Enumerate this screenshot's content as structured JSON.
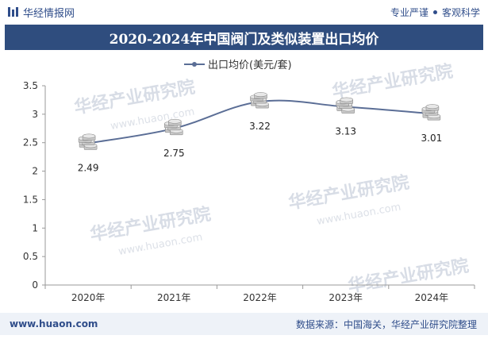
{
  "header": {
    "brand": "华经情报网",
    "tagline_left": "专业严谨",
    "tagline_right": "客观科学"
  },
  "colors": {
    "brand": "#2f4d8a",
    "title_bg": "#2f4d7e",
    "series_line": "#5b6e96",
    "footer_bg": "#eef2f8"
  },
  "footer": {
    "website": "www.huaon.com",
    "source": "数据来源：中国海关，华经产业研究院整理"
  },
  "watermark": {
    "text": "华经产业研究院",
    "url": "www.huaon.com"
  },
  "chart_data": {
    "type": "line",
    "title": "2020-2024年中国阀门及类似装置出口均价",
    "categories": [
      "2020年",
      "2021年",
      "2022年",
      "2023年",
      "2024年"
    ],
    "series": [
      {
        "name": "出口均价(美元/套)",
        "values": [
          2.49,
          2.75,
          3.22,
          3.13,
          3.01
        ]
      }
    ],
    "data_labels": [
      "2.49",
      "2.75",
      "3.22",
      "3.13",
      "3.01"
    ],
    "ylim": [
      0,
      3.5
    ],
    "yticks": [
      0,
      0.5,
      1,
      1.5,
      2,
      2.5,
      3,
      3.5
    ],
    "ytick_labels": [
      "0",
      "0.5",
      "1",
      "1.5",
      "2",
      "2.5",
      "3",
      "3.5"
    ],
    "legend_position": "top-center",
    "grid": false,
    "marker": "coin-stack"
  }
}
